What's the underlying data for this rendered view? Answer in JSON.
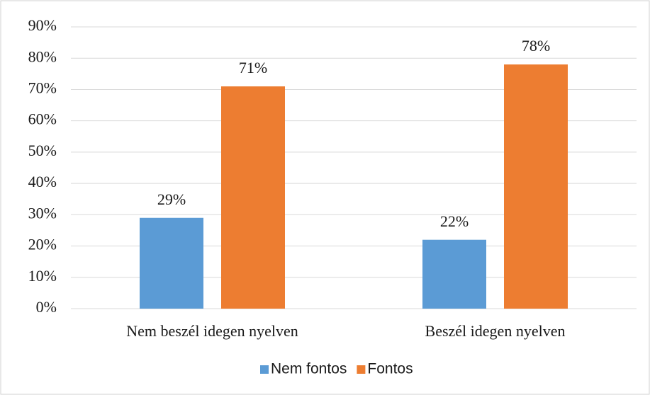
{
  "chart_data": {
    "type": "bar",
    "categories": [
      "Nem beszél idegen nyelven",
      "Beszél idegen nyelven"
    ],
    "series": [
      {
        "name": "Nem fontos",
        "color": "#5b9bd5",
        "values": [
          29,
          22
        ],
        "value_labels": [
          "29%",
          "22%"
        ]
      },
      {
        "name": "Fontos",
        "color": "#ed7d31",
        "values": [
          71,
          78
        ],
        "value_labels": [
          "71%",
          "78%"
        ]
      }
    ],
    "ylim": [
      0,
      90
    ],
    "yticks": [
      {
        "value": 0,
        "label": "0%"
      },
      {
        "value": 10,
        "label": "10%"
      },
      {
        "value": 20,
        "label": "20%"
      },
      {
        "value": 30,
        "label": "30%"
      },
      {
        "value": 40,
        "label": "40%"
      },
      {
        "value": 50,
        "label": "50%"
      },
      {
        "value": 60,
        "label": "60%"
      },
      {
        "value": 70,
        "label": "70%"
      },
      {
        "value": 80,
        "label": "80%"
      },
      {
        "value": 90,
        "label": "90%"
      }
    ],
    "grid": true,
    "legend": "bottom"
  }
}
